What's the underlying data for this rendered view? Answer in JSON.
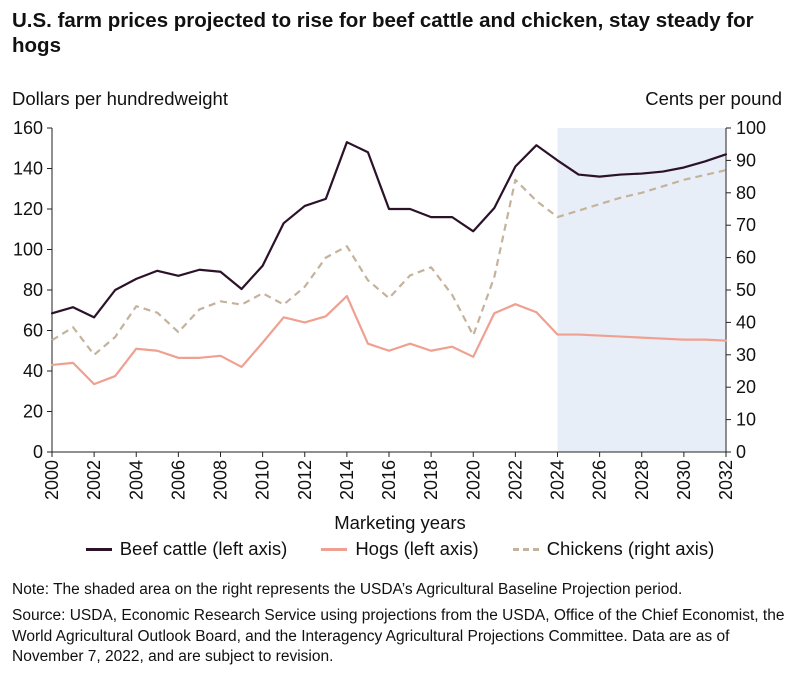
{
  "chart_data": {
    "type": "line",
    "title": "U.S. farm prices projected to rise for beef cattle and chicken, stay steady for hogs",
    "ylabel_left": "Dollars per hundredweight",
    "ylabel_right": "Cents per pound",
    "xlabel": "Marketing years",
    "x": [
      2000,
      2001,
      2002,
      2003,
      2004,
      2005,
      2006,
      2007,
      2008,
      2009,
      2010,
      2011,
      2012,
      2013,
      2014,
      2015,
      2016,
      2017,
      2018,
      2019,
      2020,
      2021,
      2022,
      2023,
      2024,
      2025,
      2026,
      2027,
      2028,
      2029,
      2030,
      2031,
      2032
    ],
    "x_ticks": [
      "2000",
      "2002",
      "2004",
      "2006",
      "2008",
      "2010",
      "2012",
      "2014",
      "2016",
      "2018",
      "2020",
      "2022",
      "2024",
      "2026",
      "2028",
      "2030",
      "2032"
    ],
    "y_left_ticks": [
      "0",
      "20",
      "40",
      "60",
      "80",
      "100",
      "120",
      "140",
      "160"
    ],
    "y_right_ticks": [
      "0",
      "10",
      "20",
      "30",
      "40",
      "50",
      "60",
      "70",
      "80",
      "90",
      "100"
    ],
    "ylim_left": [
      0,
      160
    ],
    "ylim_right": [
      0,
      100
    ],
    "projection_start": 2024,
    "projection_end": 2032,
    "series": [
      {
        "name": "Beef cattle (left axis)",
        "axis": "left",
        "color": "#2b1228",
        "style": "solid",
        "values": [
          68.5,
          71.5,
          66.5,
          80,
          85.5,
          89.5,
          87,
          90,
          89,
          80.5,
          92,
          113,
          121.5,
          125,
          153,
          148,
          120,
          120,
          116,
          116,
          109,
          120.5,
          141,
          151.5,
          144,
          137,
          136,
          137,
          137.5,
          138.5,
          140.5,
          143.5,
          147
        ]
      },
      {
        "name": "Hogs (left axis)",
        "axis": "left",
        "color": "#f0a090",
        "style": "solid",
        "values": [
          43,
          44,
          33.5,
          37.5,
          51,
          50,
          46.5,
          46.5,
          47.5,
          42,
          54,
          66.5,
          64,
          67,
          77,
          53.5,
          50,
          53.5,
          50,
          52,
          47,
          68.5,
          73,
          69,
          58,
          58,
          57.5,
          57,
          56.5,
          56,
          55.5,
          55.5,
          55
        ]
      },
      {
        "name": "Chickens (right axis)",
        "axis": "right",
        "color": "#c4b39c",
        "style": "dashed",
        "values": [
          34.5,
          38.5,
          30,
          35.5,
          45,
          43,
          37,
          44,
          46.5,
          45.5,
          49,
          45.5,
          51,
          60,
          63.5,
          53,
          47.5,
          54.5,
          57,
          48.5,
          36,
          54,
          84,
          77.5,
          72.5,
          74.5,
          76.5,
          78.5,
          80,
          82,
          84,
          85.5,
          87
        ]
      }
    ]
  },
  "note": "Note: The shaded area on the right represents the USDA’s Agricultural Baseline Projection period.",
  "source": "Source: USDA, Economic Research Service using projections from the USDA, Office of the Chief Economist, the World Agricultural Outlook Board, and the Interagency Agricultural Projections Committee. Data are as of November 7, 2022, and are subject to revision."
}
